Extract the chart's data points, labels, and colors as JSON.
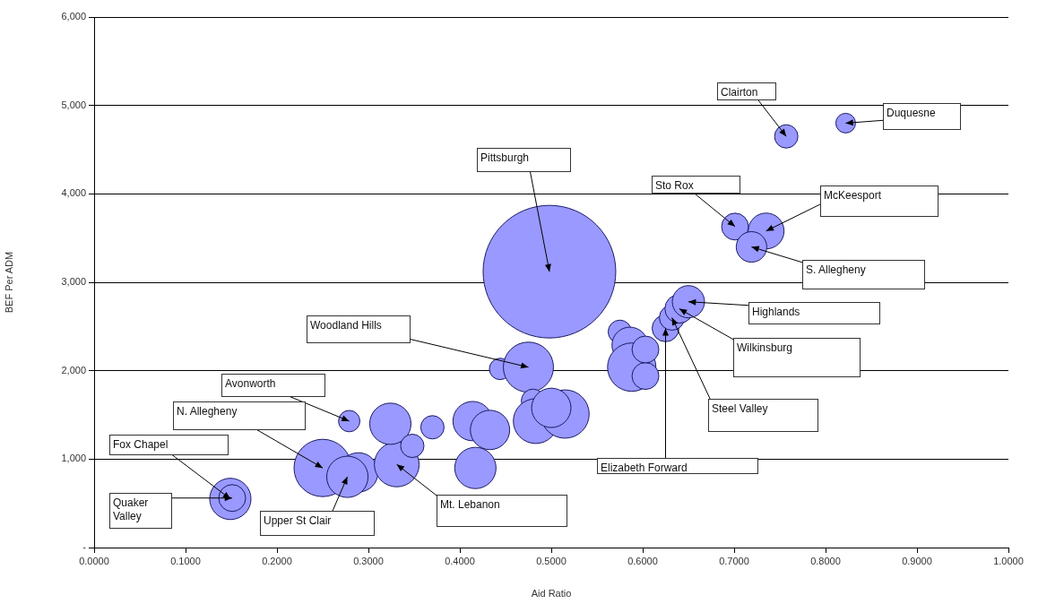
{
  "chart_data": {
    "type": "bubble",
    "xlabel": "Aid Ratio",
    "ylabel": "BEF Per ADM",
    "xlim": [
      0,
      1
    ],
    "ylim": [
      0,
      6000
    ],
    "xticks": [
      {
        "value": 0,
        "label": "0.0000"
      },
      {
        "value": 0.1,
        "label": "0.1000"
      },
      {
        "value": 0.2,
        "label": "0.2000"
      },
      {
        "value": 0.3,
        "label": "0.3000"
      },
      {
        "value": 0.4,
        "label": "0.4000"
      },
      {
        "value": 0.5,
        "label": "0.5000"
      },
      {
        "value": 0.6,
        "label": "0.6000"
      },
      {
        "value": 0.7,
        "label": "0.7000"
      },
      {
        "value": 0.8,
        "label": "0.8000"
      },
      {
        "value": 0.9,
        "label": "0.9000"
      },
      {
        "value": 1,
        "label": "1.0000"
      }
    ],
    "yticks": [
      {
        "value": 0,
        "label": "-"
      },
      {
        "value": 1000,
        "label": "1,000"
      },
      {
        "value": 2000,
        "label": "2,000"
      },
      {
        "value": 3000,
        "label": "3,000"
      },
      {
        "value": 4000,
        "label": "4,000"
      },
      {
        "value": 5000,
        "label": "5,000"
      },
      {
        "value": 6000,
        "label": "6,000"
      }
    ],
    "grid": "y",
    "legend": false,
    "series": [
      {
        "color": "#9999ff",
        "x": [
          0.149,
          0.151,
          0.279,
          0.25,
          0.289,
          0.277,
          0.331,
          0.324,
          0.348,
          0.37,
          0.414,
          0.433,
          0.417,
          0.444,
          0.475,
          0.48,
          0.483,
          0.515,
          0.5,
          0.498,
          0.575,
          0.586,
          0.588,
          0.603,
          0.603,
          0.625,
          0.632,
          0.64,
          0.65,
          0.701,
          0.735,
          0.719,
          0.757,
          0.822
        ],
        "values": [
          550,
          560,
          1430,
          900,
          850,
          800,
          940,
          1400,
          1150,
          1360,
          1430,
          1330,
          900,
          2020,
          2040,
          1660,
          1430,
          1510,
          1580,
          3120,
          2440,
          2290,
          2040,
          1940,
          2240,
          2480,
          2600,
          2700,
          2780,
          3630,
          3580,
          3400,
          4650,
          4800
        ],
        "sizes": [
          0.097,
          0.041,
          0.026,
          0.187,
          0.088,
          0.097,
          0.114,
          0.097,
          0.031,
          0.031,
          0.088,
          0.088,
          0.097,
          0.026,
          0.143,
          0.031,
          0.114,
          0.133,
          0.088,
          1,
          0.031,
          0.073,
          0.133,
          0.041,
          0.041,
          0.041,
          0.036,
          0.047,
          0.059,
          0.041,
          0.073,
          0.053,
          0.031,
          0.022
        ]
      }
    ],
    "annotations": [
      {
        "text": "Clairton",
        "x": 0.757,
        "y": 4650
      },
      {
        "text": "Duquesne",
        "x": 0.822,
        "y": 4800
      },
      {
        "text": "Pittsburgh",
        "x": 0.498,
        "y": 3120
      },
      {
        "text": "Sto Rox",
        "x": 0.701,
        "y": 3630
      },
      {
        "text": "McKeesport",
        "x": 0.735,
        "y": 3580
      },
      {
        "text": "S. Allegheny",
        "x": 0.719,
        "y": 3400
      },
      {
        "text": "Highlands",
        "x": 0.65,
        "y": 2780
      },
      {
        "text": "Wilkinsburg",
        "x": 0.64,
        "y": 2700
      },
      {
        "text": "Steel Valley",
        "x": 0.632,
        "y": 2600
      },
      {
        "text": "Elizabeth Forward",
        "x": 0.625,
        "y": 2480
      },
      {
        "text": "Woodland Hills",
        "x": 0.475,
        "y": 2040
      },
      {
        "text": "Avonworth",
        "x": 0.279,
        "y": 1430
      },
      {
        "text": "N. Allegheny",
        "x": 0.25,
        "y": 900
      },
      {
        "text": "Fox Chapel",
        "x": 0.149,
        "y": 550
      },
      {
        "text": "Quaker Valley",
        "x": 0.151,
        "y": 560
      },
      {
        "text": "Upper St Clair",
        "x": 0.277,
        "y": 800
      },
      {
        "text": "Mt. Lebanon",
        "x": 0.331,
        "y": 940
      }
    ]
  }
}
